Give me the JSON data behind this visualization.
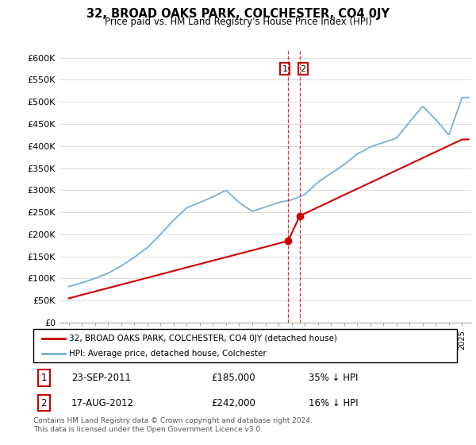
{
  "title": "32, BROAD OAKS PARK, COLCHESTER, CO4 0JY",
  "subtitle": "Price paid vs. HM Land Registry's House Price Index (HPI)",
  "ylabel_ticks": [
    "£0",
    "£50K",
    "£100K",
    "£150K",
    "£200K",
    "£250K",
    "£300K",
    "£350K",
    "£400K",
    "£450K",
    "£500K",
    "£550K",
    "£600K"
  ],
  "ylim": [
    0,
    620000
  ],
  "yticks": [
    0,
    50000,
    100000,
    150000,
    200000,
    250000,
    300000,
    350000,
    400000,
    450000,
    500000,
    550000,
    600000
  ],
  "sale1_date": 2011.73,
  "sale1_price": 185000,
  "sale2_date": 2012.63,
  "sale2_price": 242000,
  "legend_property": "32, BROAD OAKS PARK, COLCHESTER, CO4 0JY (detached house)",
  "legend_hpi": "HPI: Average price, detached house, Colchester",
  "footer": "Contains HM Land Registry data © Crown copyright and database right 2024.\nThis data is licensed under the Open Government Licence v3.0.",
  "property_color": "#cc0000",
  "hpi_color": "#7ab0d4",
  "grid_color": "#dddddd",
  "hpi_years": [
    1995,
    1996,
    1997,
    1998,
    1999,
    2000,
    2001,
    2002,
    2003,
    2004,
    2005,
    2006,
    2007,
    2008,
    2009,
    2010,
    2011,
    2012,
    2013,
    2014,
    2015,
    2016,
    2017,
    2018,
    2019,
    2020,
    2021,
    2022,
    2023,
    2024,
    2025
  ],
  "hpi_vals": [
    82000,
    90000,
    100000,
    112000,
    128000,
    148000,
    170000,
    200000,
    232000,
    260000,
    272000,
    285000,
    300000,
    272000,
    252000,
    262000,
    272000,
    278000,
    290000,
    318000,
    338000,
    358000,
    382000,
    398000,
    408000,
    418000,
    455000,
    490000,
    460000,
    425000,
    510000
  ],
  "prop_years": [
    1995,
    2011.73,
    2012.63,
    2025
  ],
  "prop_vals": [
    55000,
    185000,
    242000,
    415000
  ],
  "xlim_left": 1994.3,
  "xlim_right": 2025.7
}
